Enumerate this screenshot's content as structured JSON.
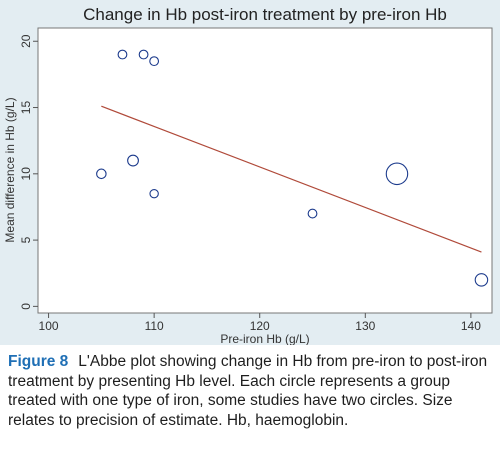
{
  "chart_data": {
    "type": "scatter",
    "title": "Change in Hb post-iron treatment by pre-iron Hb",
    "xlabel": "Pre-iron Hb (g/L)",
    "ylabel": "Mean difference in Hb (g/L)",
    "xlim": [
      99,
      142
    ],
    "ylim": [
      -0.5,
      21
    ],
    "xticks": [
      100,
      110,
      120,
      130,
      140
    ],
    "yticks": [
      0,
      5,
      10,
      15,
      20
    ],
    "grid": false,
    "points": [
      {
        "x": 107,
        "y": 19,
        "size": 1
      },
      {
        "x": 109,
        "y": 19,
        "size": 1
      },
      {
        "x": 110,
        "y": 18.5,
        "size": 1
      },
      {
        "x": 105,
        "y": 10,
        "size": 1.2
      },
      {
        "x": 108,
        "y": 11,
        "size": 1.6
      },
      {
        "x": 110,
        "y": 8.5,
        "size": 0.9
      },
      {
        "x": 125,
        "y": 7,
        "size": 1
      },
      {
        "x": 133,
        "y": 10,
        "size": 7
      },
      {
        "x": 141,
        "y": 2,
        "size": 2.2
      }
    ],
    "fit_line": {
      "x": [
        105,
        141
      ],
      "y": [
        15.1,
        4.1
      ]
    },
    "colors": {
      "points": "#1b3a8c",
      "fit_line": "#b04a3a",
      "background": "#e3edf2"
    }
  },
  "caption": {
    "label": "Figure 8",
    "text": "L'Abbe plot showing change in Hb from pre-iron to post-iron treatment by presenting Hb level. Each circle represents a group treated with one type of iron, some studies have two circles. Size relates to precision of estimate. Hb, haemoglobin."
  }
}
